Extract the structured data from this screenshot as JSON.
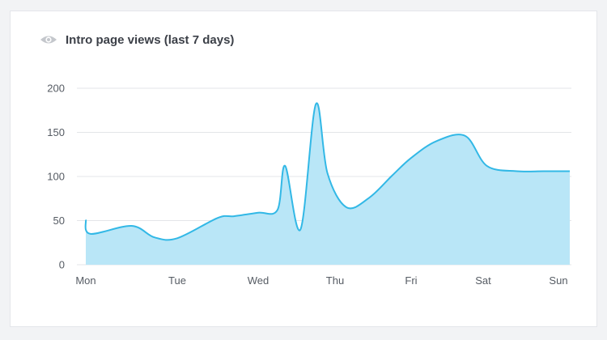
{
  "header": {
    "icon": "eye-icon",
    "title": "Intro page views (last 7 days)"
  },
  "colors": {
    "line": "#32b8e6",
    "fill": "#b9e6f7",
    "grid": "#e3e5e8",
    "text": "#555b63"
  },
  "chart_data": {
    "type": "area",
    "title": "Intro page views (last 7 days)",
    "xlabel": "",
    "ylabel": "",
    "categories": [
      "Mon",
      "Tue",
      "Wed",
      "Thu",
      "Fri",
      "Sat",
      "Sun"
    ],
    "ylim": [
      0,
      200
    ],
    "yticks": [
      0,
      50,
      100,
      150,
      200
    ],
    "grid": true,
    "legend": "none",
    "series": [
      {
        "x": [
          0,
          0.05,
          0.5,
          0.75,
          1,
          1.5,
          1.7,
          2,
          2.25,
          2.35,
          2.55,
          2.75,
          2.9,
          3.15,
          3.45,
          3.75,
          4,
          4.35,
          4.75,
          5.05,
          5.45,
          5.8,
          6.15
        ],
        "y": [
          51,
          35,
          44,
          31,
          30,
          53,
          55,
          59,
          62,
          112,
          40,
          182,
          104,
          65,
          76,
          101,
          121,
          140,
          146,
          112,
          106,
          106,
          106
        ]
      }
    ]
  }
}
